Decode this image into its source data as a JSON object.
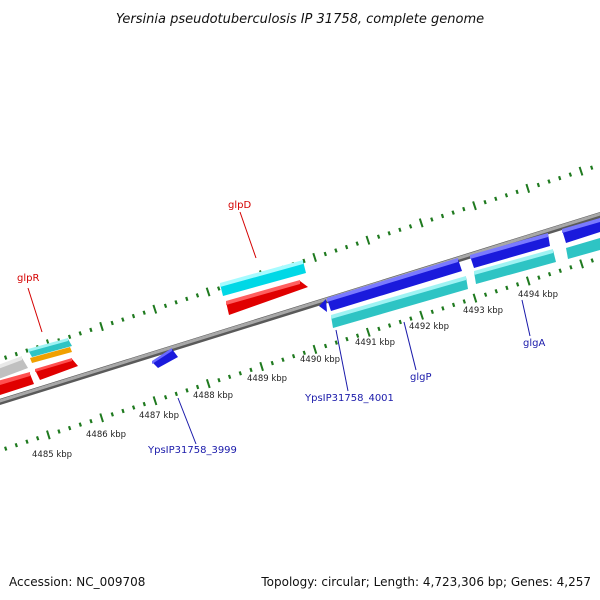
{
  "title": "Yersinia pseudotuberculosis IP 31758, complete genome",
  "footer": {
    "accession": "Accession: NC_009708",
    "summary": "Topology: circular; Length: 4,723,306 bp; Genes: 4,257"
  },
  "scale_labels": [
    "4485 kbp",
    "4486 kbp",
    "4487 kbp",
    "4488 kbp",
    "4489 kbp",
    "4490 kbp",
    "4491 kbp",
    "4492 kbp",
    "4493 kbp",
    "4494 kbp"
  ],
  "gene_labels": {
    "glpR": "glpR",
    "glpD": "glpD",
    "ypsi3999": "YpsIP31758_3999",
    "ypsi4001": "YpsIP31758_4001",
    "glgP": "glgP",
    "glgA": "glgA"
  },
  "colors": {
    "backbone": "#8a8a8a",
    "tick": "#1f7a1f",
    "forward_top": "#00e5f0",
    "forward_bottom": "#ff1a1a",
    "reverse_top": "#1a1adc",
    "reverse_bottom": "#2ec4c4",
    "orange": "#f0a000",
    "grey_gene": "#c8c8c8",
    "label_red": "#d40000",
    "label_blue": "#1a1aaa"
  }
}
